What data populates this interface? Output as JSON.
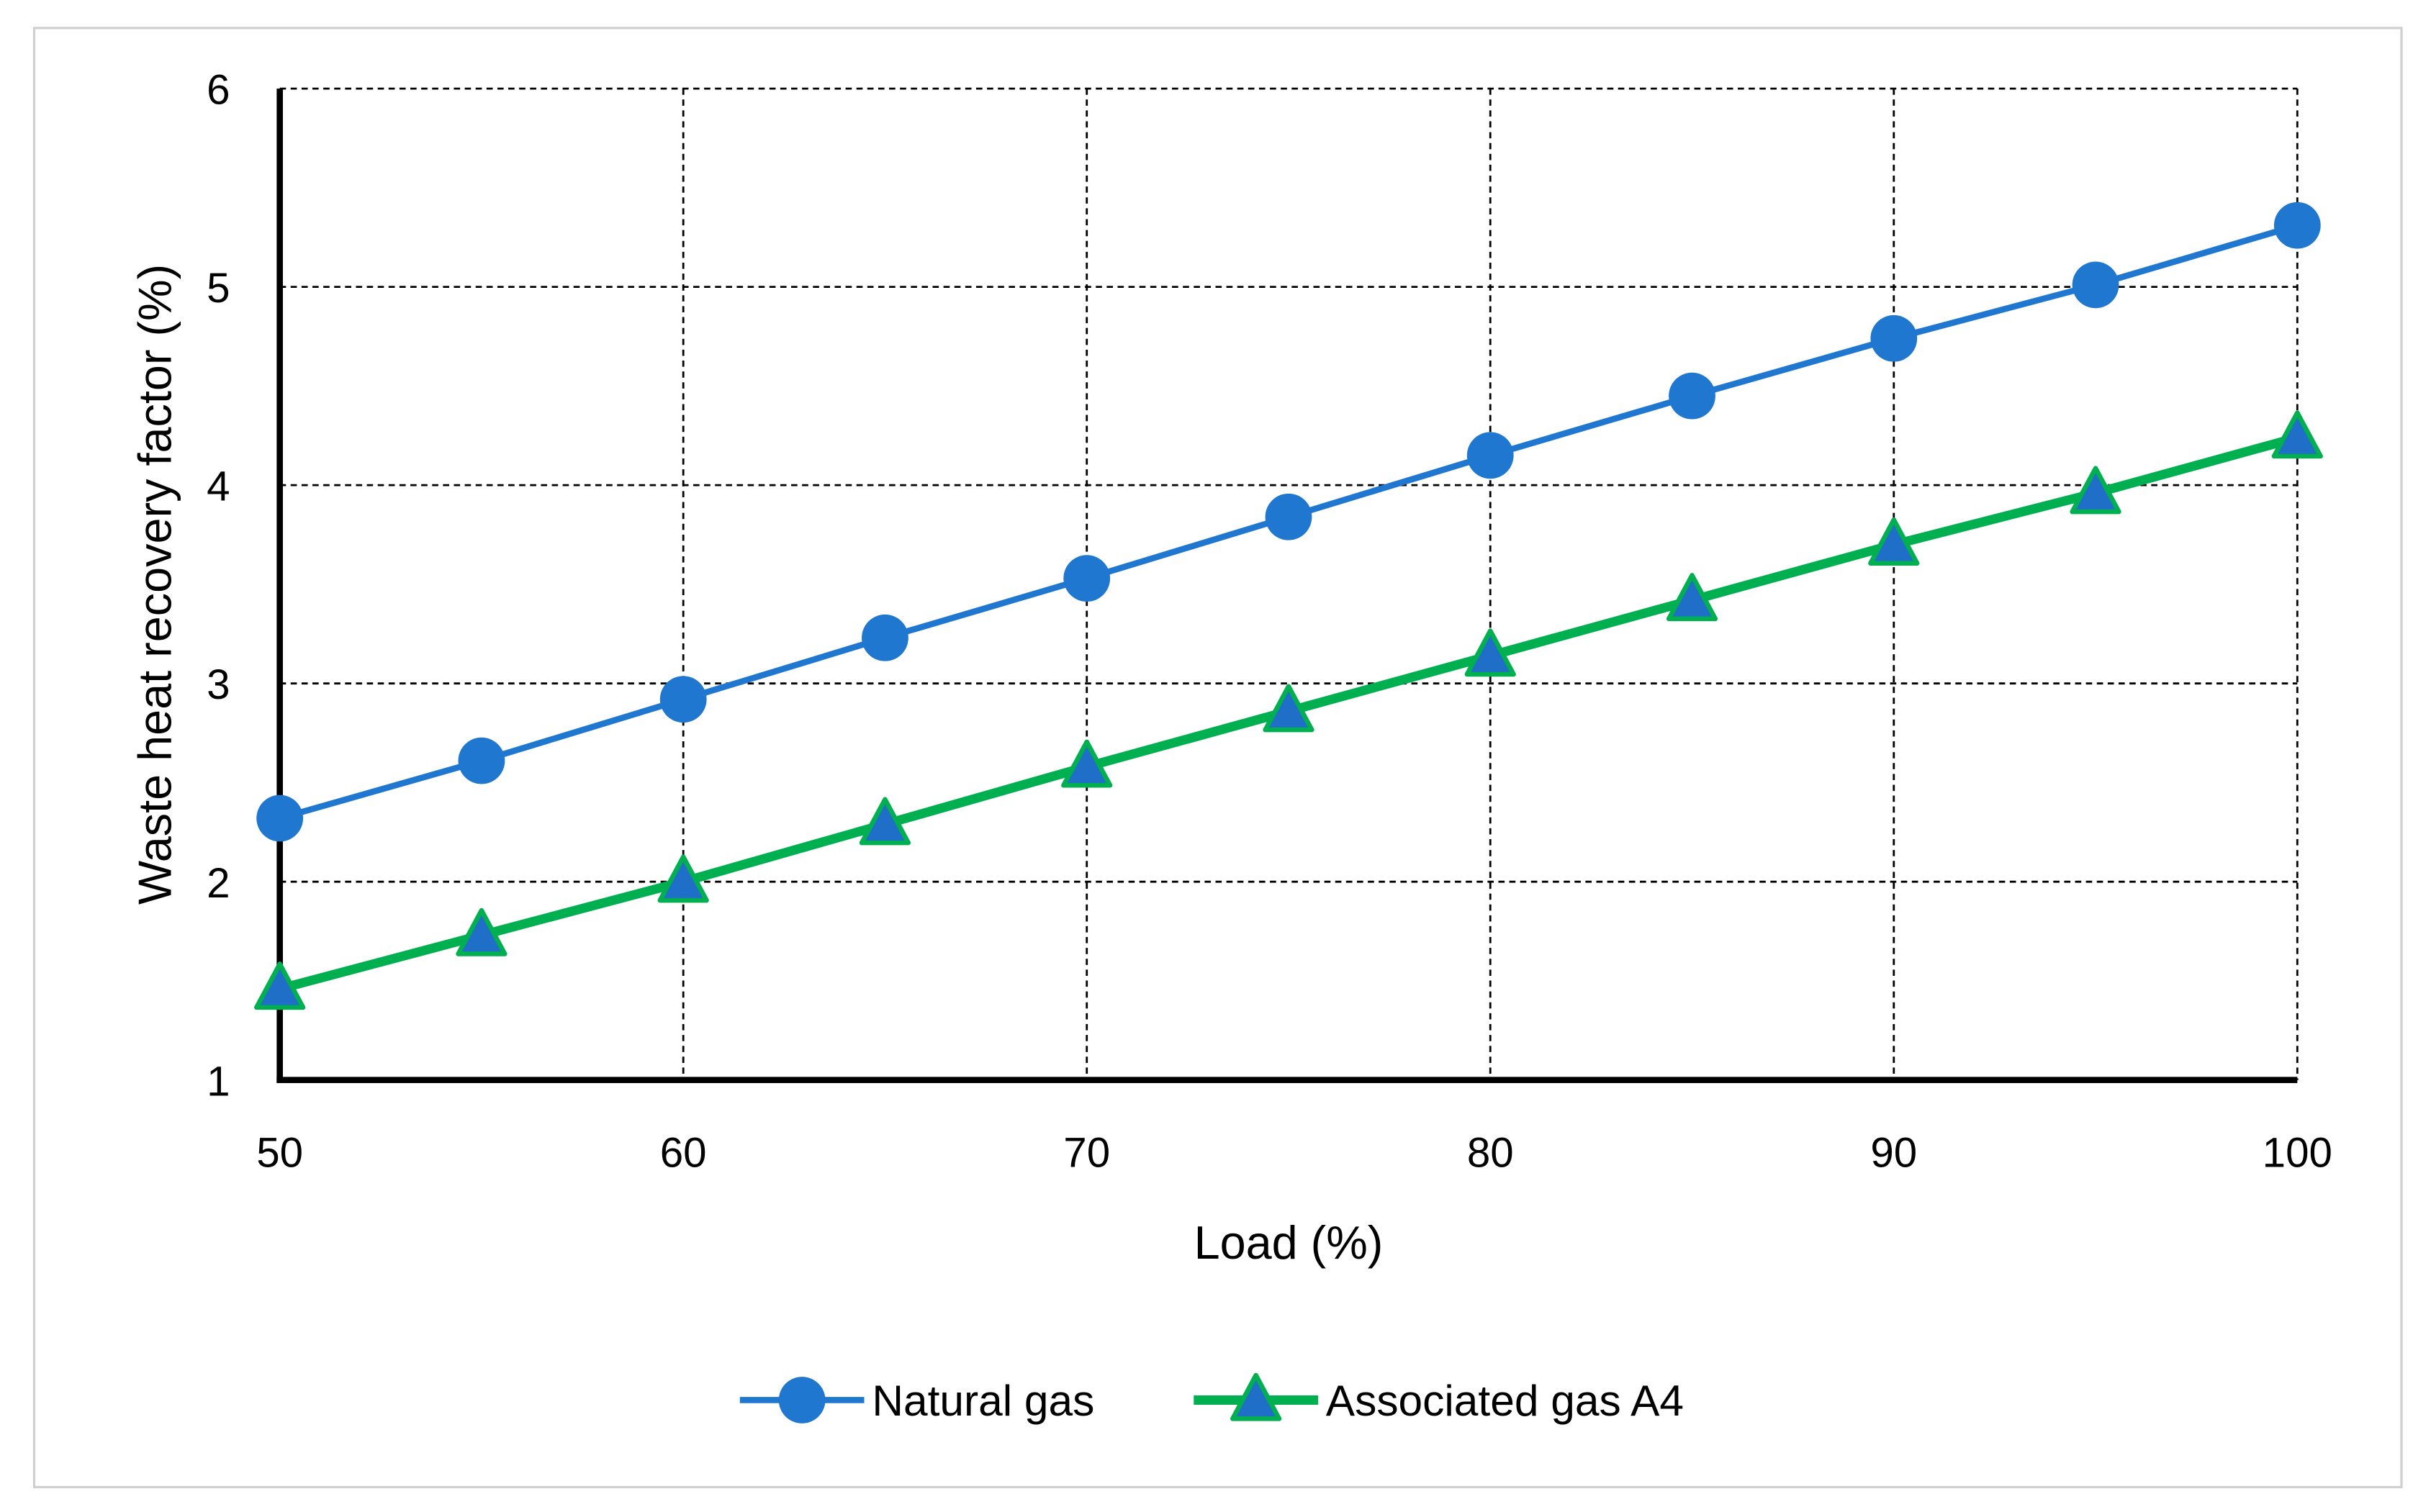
{
  "chart_data": {
    "type": "line",
    "title": "",
    "xlabel": "Load (%)",
    "ylabel": "Waste heat recovery factor (%)",
    "xlim": [
      50,
      100
    ],
    "ylim": [
      1,
      6
    ],
    "xticks": [
      50,
      60,
      70,
      80,
      90,
      100
    ],
    "yticks": [
      1,
      2,
      3,
      4,
      5,
      6
    ],
    "grid": true,
    "legend_position": "bottom",
    "x": [
      50,
      55,
      60,
      65,
      70,
      75,
      80,
      85,
      90,
      95,
      100
    ],
    "series": [
      {
        "name": "Natural gas",
        "color": "#1f77cf",
        "marker": "circle",
        "values": [
          2.32,
          2.61,
          2.92,
          3.23,
          3.53,
          3.84,
          4.15,
          4.45,
          4.74,
          5.01,
          5.31
        ]
      },
      {
        "name": "Associated gas A4",
        "color": "#00b050",
        "marker_fill": "#1f6fc8",
        "marker": "triangle",
        "values": [
          1.46,
          1.73,
          2.0,
          2.29,
          2.58,
          2.86,
          3.14,
          3.42,
          3.7,
          3.96,
          4.24
        ]
      }
    ]
  }
}
